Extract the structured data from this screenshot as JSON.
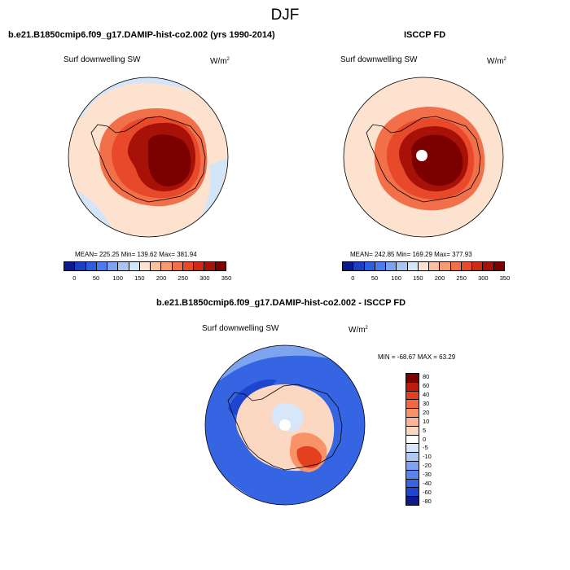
{
  "season": "DJF",
  "panels": {
    "model": {
      "title": "b.e21.B1850cmip6.f09_g17.DAMIP-hist-co2.002 (yrs 1990-2014)",
      "variable": "Surf downwelling SW",
      "units_base": "W/m",
      "units_exp": "2",
      "stats": "MEAN= 225.25  Min= 139.62  Max= 381.94"
    },
    "obs": {
      "title": "ISCCP FD",
      "variable": "Surf downwelling SW",
      "units_base": "W/m",
      "units_exp": "2",
      "stats": "MEAN= 242.85  Min= 169.29  Max= 377.93"
    },
    "diff": {
      "title": "b.e21.B1850cmip6.f09_g17.DAMIP-hist-co2.002 - ISCCP FD",
      "variable": "Surf downwelling SW",
      "units_base": "W/m",
      "units_exp": "2",
      "stats": "MIN = -68.67 MAX =  63.29"
    }
  },
  "colorbar_abs": {
    "colors": [
      "#0b1a8c",
      "#1c3ec2",
      "#2c5fe0",
      "#4a7cf0",
      "#7ea2f2",
      "#a9c5f5",
      "#d3e5f9",
      "#fde2cf",
      "#fbc0a0",
      "#f79a72",
      "#f27049",
      "#e8492a",
      "#d02a16",
      "#a81108",
      "#7b0000"
    ],
    "labels": [
      "0",
      "50",
      "100",
      "150",
      "200",
      "250",
      "300",
      "350"
    ]
  },
  "colorbar_diff": {
    "colors": [
      "#7b0000",
      "#c01a0c",
      "#e4401f",
      "#f4683f",
      "#f89268",
      "#fab594",
      "#fcd8c2",
      "#ffffff",
      "#d7e6f8",
      "#aec8f3",
      "#7fa4ef",
      "#5885ea",
      "#3565e2",
      "#1d45d0",
      "#0b1a8c"
    ],
    "labels": [
      "80",
      "60",
      "40",
      "30",
      "20",
      "10",
      "5",
      "0",
      "-5",
      "-10",
      "-20",
      "-30",
      "-40",
      "-60",
      "-80"
    ]
  },
  "map_colors": {
    "ocean_light": "#fde2cf",
    "ocean_blue": "#d3e5f9",
    "land_low": "#f27049",
    "land_mid": "#e8492a",
    "land_high": "#a81108",
    "land_core": "#7b0000",
    "diff_bg": "#3565e2",
    "diff_dark": "#1d45d0",
    "diff_light": "#7fa4ef",
    "diff_pos_low": "#fcd8c2",
    "diff_pos_mid": "#f89268",
    "diff_pos_high": "#e4401f",
    "diff_neg_pale": "#d7e6f8"
  }
}
